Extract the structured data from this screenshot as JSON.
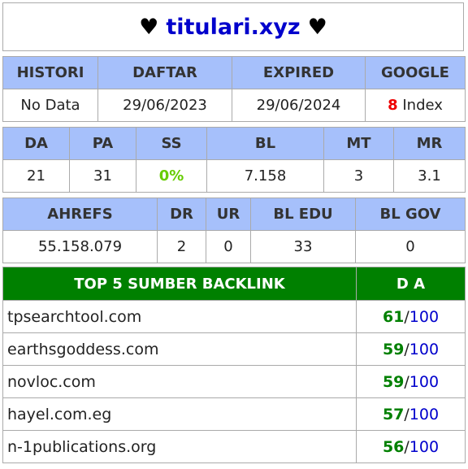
{
  "title": {
    "domain": "titulari.xyz",
    "heart": "♥"
  },
  "info": {
    "headers": [
      "HISTORI",
      "DAFTAR",
      "EXPIRED",
      "GOOGLE"
    ],
    "histori": "No Data",
    "daftar": "29/06/2023",
    "expired": "29/06/2024",
    "google_count": "8",
    "google_label": " Index"
  },
  "metrics1": {
    "headers": [
      "DA",
      "PA",
      "SS",
      "BL",
      "MT",
      "MR"
    ],
    "values": [
      "21",
      "31",
      "0%",
      "7.158",
      "3",
      "3.1"
    ]
  },
  "metrics2": {
    "headers": [
      "AHREFS",
      "DR",
      "UR",
      "BL EDU",
      "BL GOV"
    ],
    "values": [
      "55.158.079",
      "2",
      "0",
      "33",
      "0"
    ]
  },
  "backlinks": {
    "header": "TOP 5 SUMBER BACKLINK",
    "da_header": "D A",
    "max": "100",
    "sep": "/",
    "rows": [
      {
        "site": "tpsearchtool.com",
        "da": "61"
      },
      {
        "site": "earthsgoddess.com",
        "da": "59"
      },
      {
        "site": "novloc.com",
        "da": "59"
      },
      {
        "site": "hayel.com.eg",
        "da": "57"
      },
      {
        "site": "n-1publications.org",
        "da": "56"
      }
    ]
  }
}
